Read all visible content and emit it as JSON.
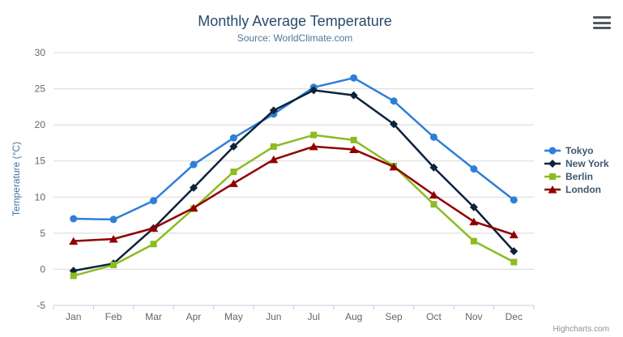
{
  "credits": "Highcharts.com",
  "colors": {
    "title": "#274b6d",
    "subtitle": "#4d759e",
    "axis_labels": "#666666",
    "y_axis_title": "#4572a7",
    "gridline": "#d8d8d8",
    "axis_line": "#c0d0e0",
    "legend_text": "#3e576f",
    "credits_text": "#909090"
  },
  "chart_data": {
    "type": "line",
    "title": "Monthly Average Temperature",
    "subtitle": "Source: WorldClimate.com",
    "xlabel": "",
    "ylabel": "Temperature (°C)",
    "ylim": [
      -5,
      30
    ],
    "ytick_step": 5,
    "grid": true,
    "legend_position": "right",
    "categories": [
      "Jan",
      "Feb",
      "Mar",
      "Apr",
      "May",
      "Jun",
      "Jul",
      "Aug",
      "Sep",
      "Oct",
      "Nov",
      "Dec"
    ],
    "series": [
      {
        "name": "Tokyo",
        "color": "#2f7ed8",
        "marker": "circle",
        "values": [
          7.0,
          6.9,
          9.5,
          14.5,
          18.2,
          21.5,
          25.2,
          26.5,
          23.3,
          18.3,
          13.9,
          9.6
        ]
      },
      {
        "name": "New York",
        "color": "#0d233a",
        "marker": "diamond",
        "values": [
          -0.2,
          0.8,
          5.7,
          11.3,
          17.0,
          22.0,
          24.8,
          24.1,
          20.1,
          14.1,
          8.6,
          2.5
        ]
      },
      {
        "name": "Berlin",
        "color": "#8bbc21",
        "marker": "square",
        "values": [
          -0.9,
          0.6,
          3.5,
          8.4,
          13.5,
          17.0,
          18.6,
          17.9,
          14.3,
          9.0,
          3.9,
          1.0
        ]
      },
      {
        "name": "London",
        "color": "#910000",
        "marker": "triangle",
        "values": [
          3.9,
          4.2,
          5.7,
          8.5,
          11.9,
          15.2,
          17.0,
          16.6,
          14.2,
          10.3,
          6.6,
          4.8
        ]
      }
    ]
  }
}
